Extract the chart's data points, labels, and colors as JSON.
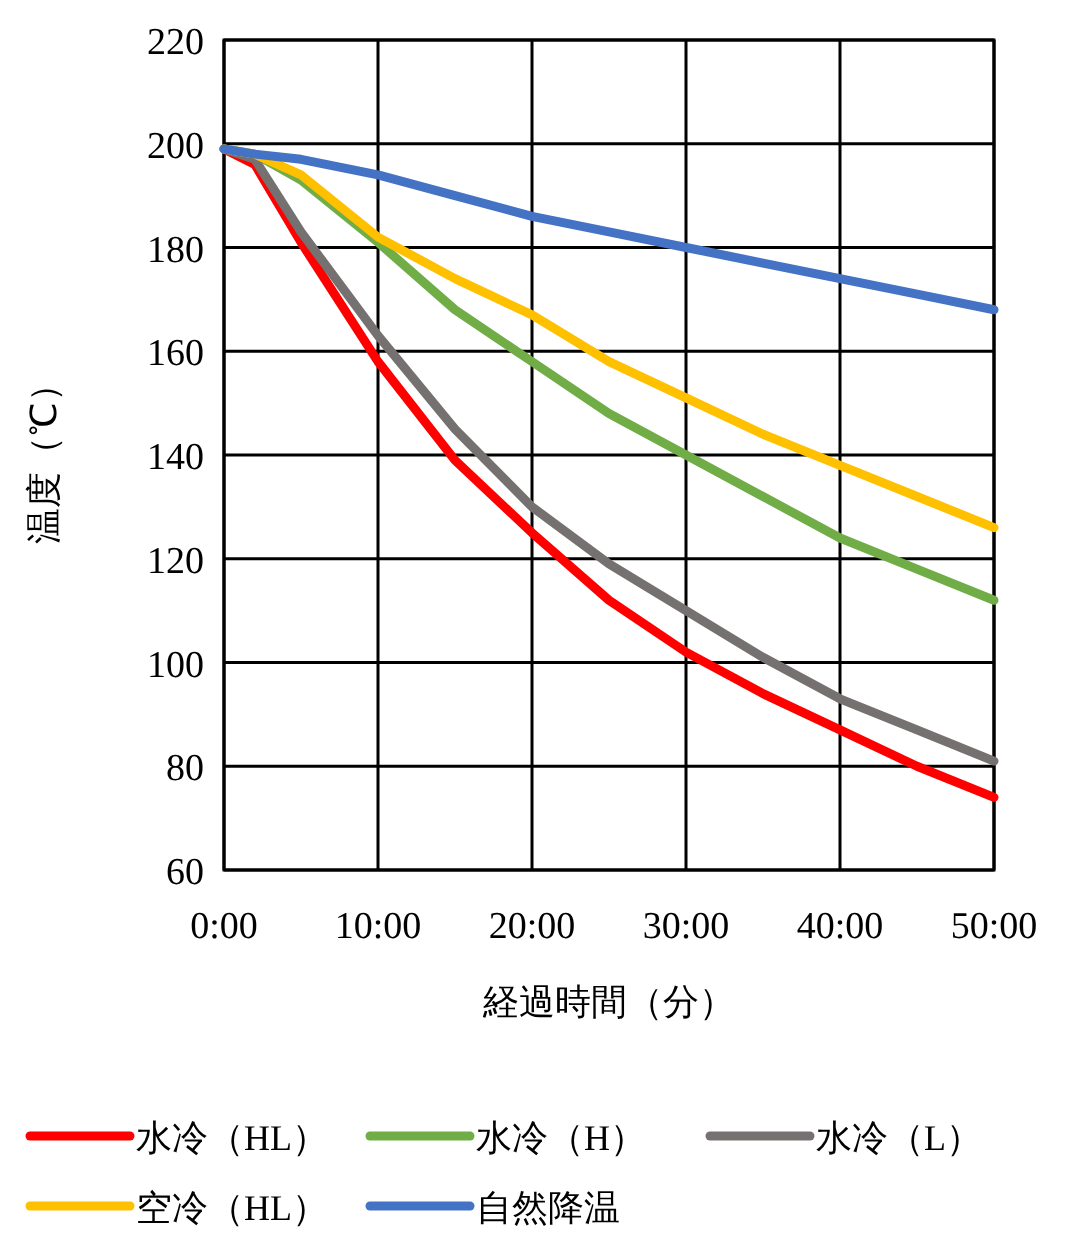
{
  "chart_data": {
    "type": "line",
    "xlabel": "経過時間（分）",
    "ylabel": "温度（℃）",
    "x": [
      0,
      2,
      5,
      10,
      15,
      20,
      25,
      30,
      35,
      40,
      45,
      50
    ],
    "xlim": [
      0,
      50
    ],
    "xticks": [
      {
        "value": 0,
        "label": "0:00"
      },
      {
        "value": 10,
        "label": "10:00"
      },
      {
        "value": 20,
        "label": "20:00"
      },
      {
        "value": 30,
        "label": "30:00"
      },
      {
        "value": 40,
        "label": "40:00"
      },
      {
        "value": 50,
        "label": "50:00"
      }
    ],
    "ylim": [
      60,
      220
    ],
    "yticks": [
      60,
      80,
      100,
      120,
      140,
      160,
      180,
      200,
      220
    ],
    "grid": true,
    "legend": "bottom",
    "marker": "none",
    "line_style": "solid",
    "series": [
      {
        "name": "水冷（HL）",
        "color": "#ff0000",
        "values": [
          199,
          196,
          181,
          158,
          139,
          125,
          112,
          102,
          94,
          87,
          80,
          74
        ]
      },
      {
        "name": "水冷（H）",
        "color": "#70ad47",
        "values": [
          199,
          198,
          193,
          181,
          168,
          158,
          148,
          140,
          132,
          124,
          118,
          112
        ]
      },
      {
        "name": "水冷（L）",
        "color": "#767171",
        "values": [
          199,
          197,
          183,
          163,
          145,
          130,
          119,
          110,
          101,
          93,
          87,
          81
        ]
      },
      {
        "name": "空冷（HL）",
        "color": "#ffc000",
        "values": [
          199,
          198,
          194,
          182,
          174,
          167,
          158,
          151,
          144,
          138,
          132,
          126
        ]
      },
      {
        "name": "自然降温",
        "color": "#4472c4",
        "values": [
          199,
          198,
          197,
          194,
          190,
          186,
          183,
          180,
          177,
          174,
          171,
          168
        ]
      }
    ]
  }
}
